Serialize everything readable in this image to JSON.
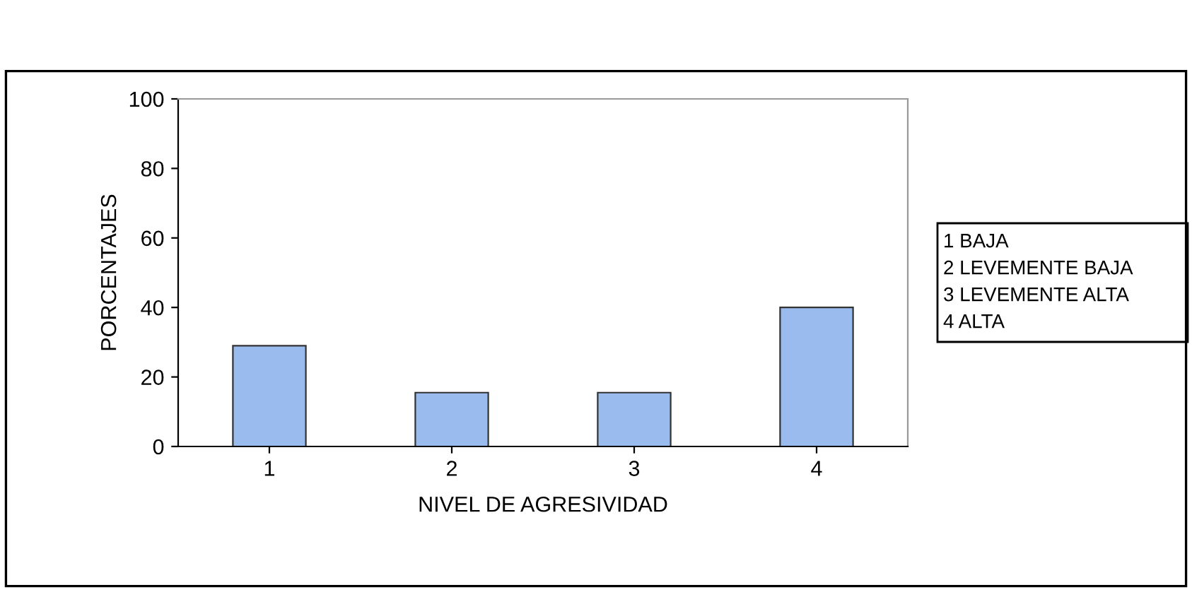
{
  "chart_data": {
    "type": "bar",
    "xlabel": "NIVEL DE AGRESIVIDAD",
    "ylabel": "PORCENTAJES",
    "categories": [
      "1",
      "2",
      "3",
      "4"
    ],
    "values": [
      29,
      15.5,
      15.5,
      40
    ],
    "color": "#99bbee",
    "ylim": [
      0,
      100
    ],
    "yticks": [
      0,
      20,
      40,
      60,
      80,
      100
    ],
    "grid": false,
    "annotations": [
      "1 BAJA",
      "2 LEVEMENTE BAJA",
      "3 LEVEMENTE ALTA",
      "4 ALTA"
    ]
  }
}
